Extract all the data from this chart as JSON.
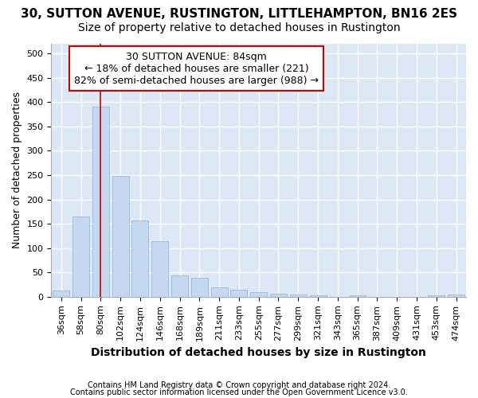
{
  "title1": "30, SUTTON AVENUE, RUSTINGTON, LITTLEHAMPTON, BN16 2ES",
  "title2": "Size of property relative to detached houses in Rustington",
  "xlabel": "Distribution of detached houses by size in Rustington",
  "ylabel": "Number of detached properties",
  "footnote1": "Contains HM Land Registry data © Crown copyright and database right 2024.",
  "footnote2": "Contains public sector information licensed under the Open Government Licence v3.0.",
  "categories": [
    "36sqm",
    "58sqm",
    "80sqm",
    "102sqm",
    "124sqm",
    "146sqm",
    "168sqm",
    "189sqm",
    "211sqm",
    "233sqm",
    "255sqm",
    "277sqm",
    "299sqm",
    "321sqm",
    "343sqm",
    "365sqm",
    "387sqm",
    "409sqm",
    "431sqm",
    "453sqm",
    "474sqm"
  ],
  "values": [
    13,
    165,
    390,
    248,
    157,
    114,
    44,
    39,
    20,
    15,
    9,
    7,
    5,
    3,
    0,
    3,
    0,
    0,
    0,
    3,
    4
  ],
  "bar_color": "#c5d8f0",
  "bar_edge_color": "#8ab4d8",
  "highlight_label": "30 SUTTON AVENUE: 84sqm",
  "annotation_line1": "← 18% of detached houses are smaller (221)",
  "annotation_line2": "82% of semi-detached houses are larger (988) →",
  "vline_color": "#cc0000",
  "annotation_box_color": "#cc0000",
  "vline_idx": 2,
  "ylim": [
    0,
    520
  ],
  "yticks": [
    0,
    50,
    100,
    150,
    200,
    250,
    300,
    350,
    400,
    450,
    500
  ],
  "fig_bg": "#ffffff",
  "plot_bg": "#dce8f5",
  "grid_color": "#ffffff",
  "title1_fontsize": 11,
  "title2_fontsize": 10,
  "ylabel_fontsize": 9,
  "xlabel_fontsize": 10,
  "tick_fontsize": 8,
  "annot_fontsize": 9,
  "foot_fontsize": 7
}
